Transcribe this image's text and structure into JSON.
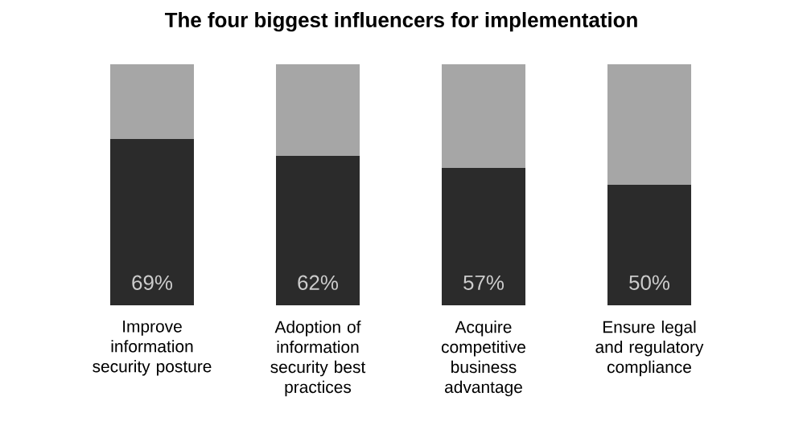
{
  "chart_data": {
    "type": "bar",
    "title": "The four biggest influencers for implementation",
    "stacked": true,
    "categories": [
      "Improve information security posture",
      "Adoption of information security best practices",
      "Acquire competitive business advantage",
      "Ensure legal and regulatory compliance"
    ],
    "series": [
      {
        "color": "#2b2b2b",
        "values": [
          69,
          62,
          57,
          50
        ],
        "value_labels": [
          "69%",
          "62%",
          "57%",
          "50%"
        ]
      },
      {
        "color": "#a6a6a6",
        "values": [
          31,
          38,
          43,
          50
        ]
      }
    ]
  }
}
